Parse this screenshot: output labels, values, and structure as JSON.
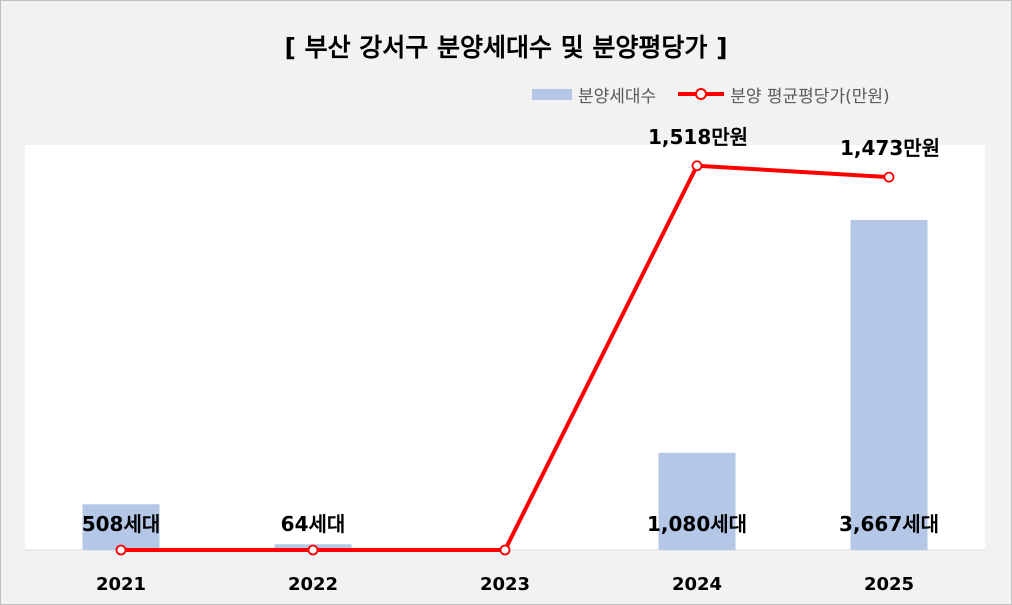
{
  "chart_data": {
    "type": "bar+line",
    "title": "[ 부산 강서구 분양세대수 및 분양평당가 ]",
    "categories": [
      "2021",
      "2022",
      "2023",
      "2024",
      "2025"
    ],
    "series": [
      {
        "name": "분양세대수",
        "type": "bar",
        "values": [
          508,
          64,
          0,
          1080,
          3667
        ],
        "labels": [
          "508세대",
          "64세대",
          "",
          "1,080세대",
          "3,667세대"
        ],
        "color": "#b4c7e7",
        "ylim": [
          0,
          4500
        ]
      },
      {
        "name": "분양 평균평당가(만원)",
        "type": "line",
        "values": [
          0,
          0,
          0,
          1518,
          1473
        ],
        "labels": [
          "",
          "",
          "",
          "1,518만원",
          "1,473만원"
        ],
        "color": "#ff0000",
        "ylim": [
          0,
          1600
        ]
      }
    ],
    "legend": "top-right",
    "grid": false
  }
}
